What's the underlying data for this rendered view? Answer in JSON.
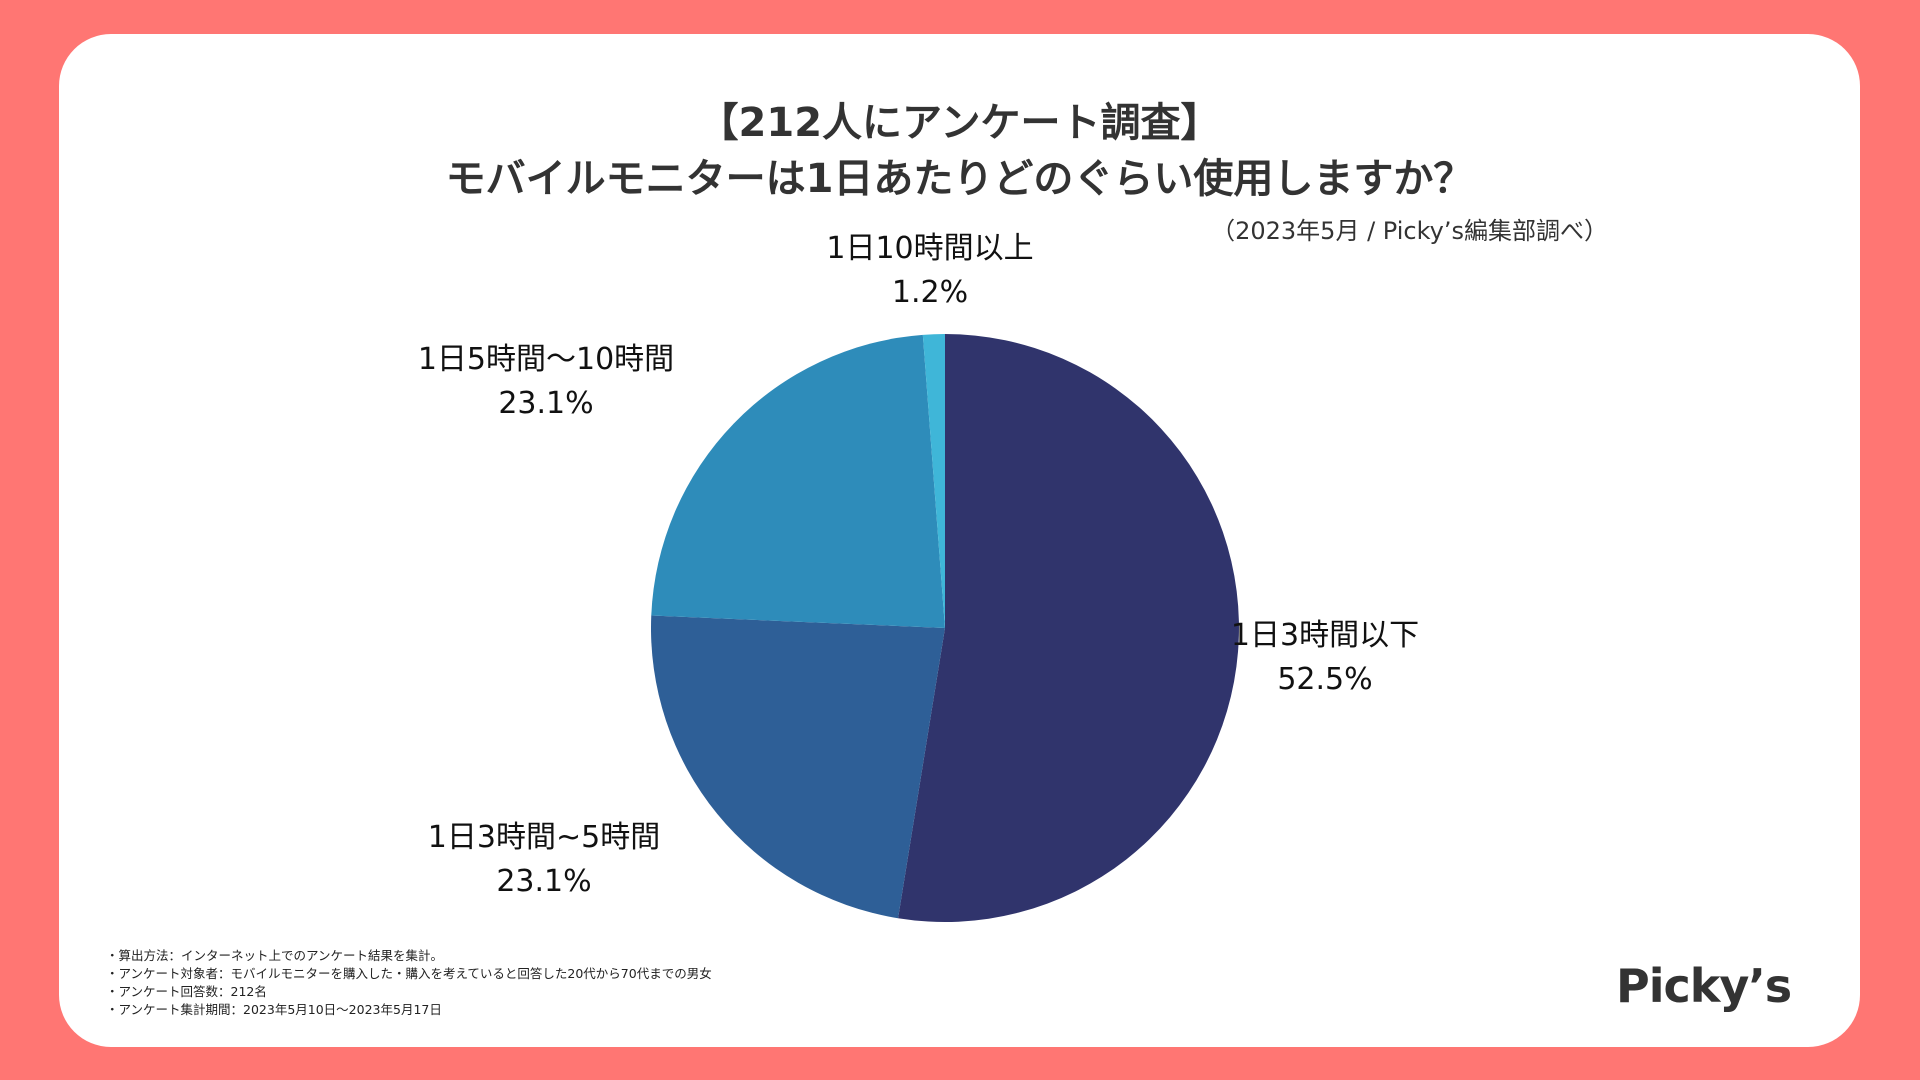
{
  "header": {
    "title_line1": "【212人にアンケート調査】",
    "title_line2": "モバイルモニターは1日あたりどのぐらい使用しますか？",
    "source": "（2023年5月 / Picky’s編集部調べ）"
  },
  "chart_data": {
    "type": "pie",
    "title": "モバイルモニターは1日あたりどのぐらい使用しますか？",
    "slices": [
      {
        "label": "1日3時間以下",
        "value": 52.5,
        "value_label": "52.5%",
        "color": "#30346C"
      },
      {
        "label": "1日3時間~5時間",
        "value": 23.1,
        "value_label": "23.1%",
        "color": "#2E5F97"
      },
      {
        "label": "1日5時間〜10時間",
        "value": 23.1,
        "value_label": "23.1%",
        "color": "#2E8CBA"
      },
      {
        "label": "1日10時間以上",
        "value": 1.2,
        "value_label": "1.2%",
        "color": "#3FB6D8"
      }
    ]
  },
  "notes": [
    "算出方法：インターネット上でのアンケート結果を集計。",
    "アンケート対象者：モバイルモニターを購入した・購入を考えていると回答した20代から70代までの男女",
    "アンケート回答数：212名",
    "アンケート集計期間：2023年5月10日〜2023年5月17日"
  ],
  "brand": {
    "logo_text": "Picky’s"
  },
  "colors": {
    "background": "#FF7673",
    "card": "#FFFFFF",
    "title_text": "#333333"
  }
}
